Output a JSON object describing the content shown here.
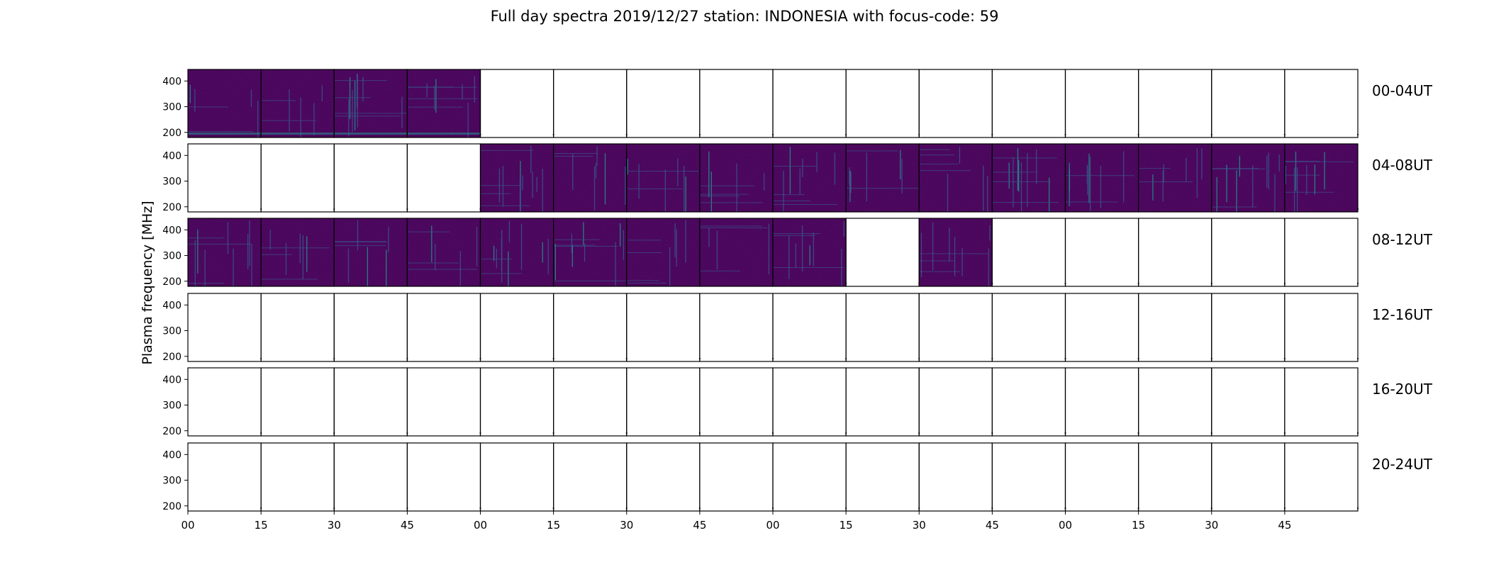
{
  "chart_data": {
    "type": "heatmap",
    "title": "Full day spectra 2019/12/27 station: INDONESIA with focus-code: 59",
    "ylabel": "Plasma frequency [MHz]",
    "y_ticks": [
      "400",
      "300",
      "200"
    ],
    "ylim": [
      180,
      445
    ],
    "x_ticks": [
      "00",
      "15",
      "30",
      "45",
      "00",
      "15",
      "30",
      "45",
      "00",
      "15",
      "30",
      "45",
      "00",
      "15",
      "30",
      "45"
    ],
    "panels_per_row": 16,
    "rows": [
      {
        "label": "00-04UT",
        "filled": [
          [
            0,
            4
          ]
        ]
      },
      {
        "label": "04-08UT",
        "filled": [
          [
            4,
            16
          ]
        ]
      },
      {
        "label": "08-12UT",
        "filled": [
          [
            0,
            9
          ],
          [
            10,
            11
          ]
        ]
      },
      {
        "label": "12-16UT",
        "filled": []
      },
      {
        "label": "16-20UT",
        "filled": []
      },
      {
        "label": "20-24UT",
        "filled": []
      }
    ],
    "colormap": "viridis",
    "colors": {
      "background": "#3d0a5c",
      "dark": "#440154",
      "mid": "#3b528b",
      "bright": "#21918c",
      "hot": "#5ec962"
    }
  }
}
